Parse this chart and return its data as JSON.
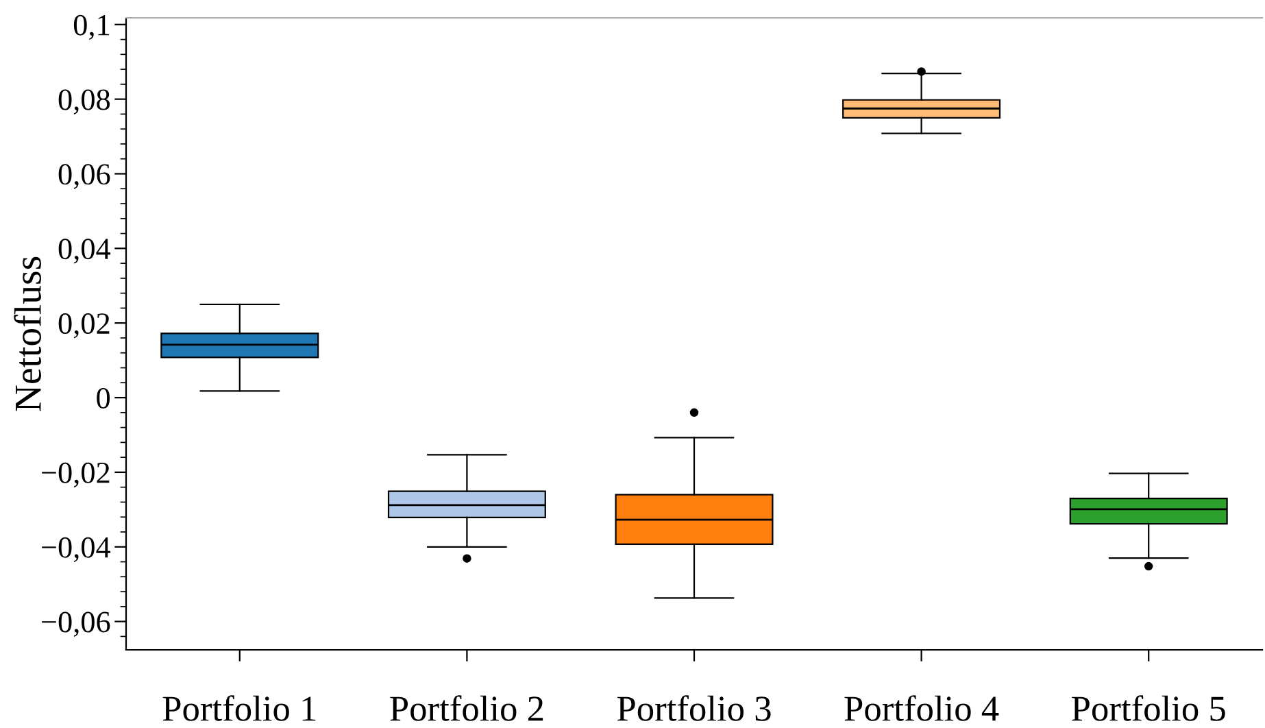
{
  "chart_data": {
    "type": "box",
    "ylabel": "Nettofluss",
    "categories": [
      "Portfolio 1",
      "Portfolio 2",
      "Portfolio 3",
      "Portfolio 4",
      "Portfolio 5"
    ],
    "colors": [
      "#1f77b4",
      "#aec7e8",
      "#ff7f0e",
      "#ffbb78",
      "#2ca02c"
    ],
    "boxes": [
      {
        "low": 0.0018,
        "q1": 0.0108,
        "median": 0.0142,
        "q3": 0.0172,
        "high": 0.025
      },
      {
        "low": -0.04,
        "q1": -0.0321,
        "median": -0.0288,
        "q3": -0.0251,
        "high": -0.0153,
        "outliers": [
          -0.0431
        ]
      },
      {
        "low": -0.0537,
        "q1": -0.0393,
        "median": -0.0327,
        "q3": -0.026,
        "high": -0.0107,
        "outliers": [
          -0.004
        ]
      },
      {
        "low": 0.0708,
        "q1": 0.075,
        "median": 0.0775,
        "q3": 0.0798,
        "high": 0.0869,
        "outliers": [
          0.0874
        ]
      },
      {
        "low": -0.043,
        "q1": -0.0338,
        "median": -0.0299,
        "q3": -0.027,
        "high": -0.0203,
        "outliers": [
          -0.0452
        ]
      }
    ],
    "ylim": [
      -0.0676,
      0.1018
    ],
    "yticks": [
      {
        "value": -0.06,
        "label": "−0,06"
      },
      {
        "value": -0.04,
        "label": "−0,04"
      },
      {
        "value": -0.02,
        "label": "−0,02"
      },
      {
        "value": 0,
        "label": "0"
      },
      {
        "value": 0.02,
        "label": "0,02"
      },
      {
        "value": 0.04,
        "label": "0,04"
      },
      {
        "value": 0.06,
        "label": "0,06"
      },
      {
        "value": 0.08,
        "label": "0,08"
      },
      {
        "value": 0.1,
        "label": "0,1"
      }
    ],
    "grid": false
  }
}
